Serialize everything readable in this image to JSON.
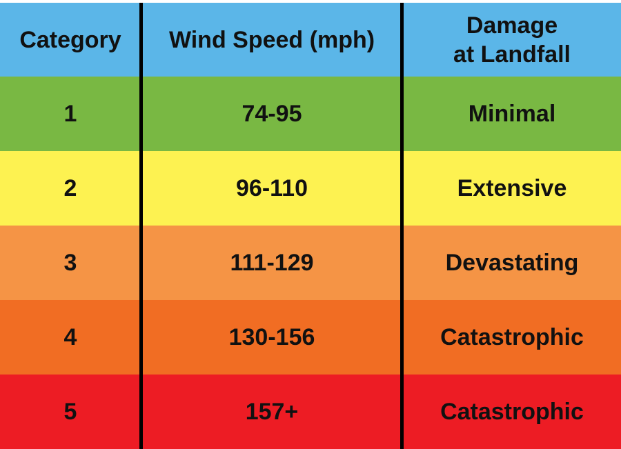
{
  "chart_data": {
    "type": "table",
    "columns": [
      "Category",
      "Wind Speed (mph)",
      "Damage at Landfall"
    ],
    "rows": [
      {
        "category": "1",
        "wind_speed": "74-95",
        "damage": "Minimal",
        "color": "#79b843"
      },
      {
        "category": "2",
        "wind_speed": "96-110",
        "damage": "Extensive",
        "color": "#fdf251"
      },
      {
        "category": "3",
        "wind_speed": "111-129",
        "damage": "Devastating",
        "color": "#f59445"
      },
      {
        "category": "4",
        "wind_speed": "130-156",
        "damage": "Catastrophic",
        "color": "#f16d23"
      },
      {
        "category": "5",
        "wind_speed": "157+",
        "damage": "Catastrophic",
        "color": "#ed1c24"
      }
    ]
  },
  "header": {
    "category": "Category",
    "wind_speed": "Wind Speed (mph)",
    "damage_line1": "Damage",
    "damage_line2": "at Landfall",
    "color": "#5bb6e8"
  }
}
